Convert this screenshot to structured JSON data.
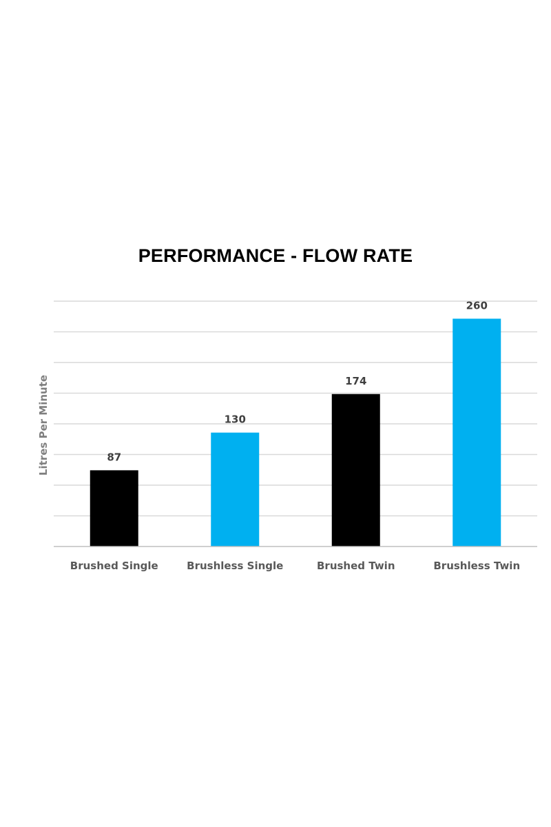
{
  "chart_data": {
    "type": "bar",
    "title": "PERFORMANCE - FLOW RATE",
    "xlabel": "",
    "ylabel": "Litres Per Minute",
    "categories": [
      "Brushed Single",
      "Brushless Single",
      "Brushed Twin",
      "Brushless Twin"
    ],
    "values": [
      87,
      130,
      174,
      260
    ],
    "data_labels": [
      "87",
      "130",
      "174",
      "260"
    ],
    "bar_colors": [
      "#000000",
      "#00b0f0",
      "#000000",
      "#00b0f0"
    ],
    "ylim": [
      0,
      280
    ],
    "grid_step": 35,
    "grid": true,
    "legend": "none",
    "y_tick_labels_shown": false
  }
}
